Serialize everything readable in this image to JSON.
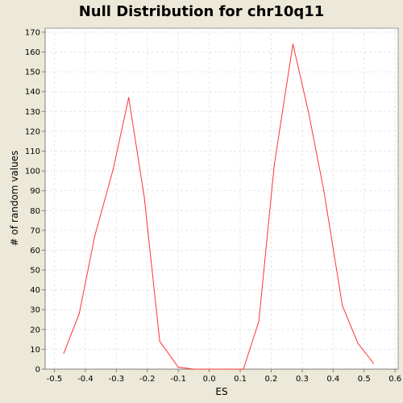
{
  "chart_data": {
    "type": "line",
    "title": "Null Distribution for chr10q11",
    "xlabel": "ES",
    "ylabel": "# of random values",
    "xlim": [
      -0.53,
      0.61
    ],
    "ylim": [
      0,
      172
    ],
    "xticks": [
      "-0.5",
      "-0.4",
      "-0.3",
      "-0.2",
      "-0.1",
      "0.0",
      "0.1",
      "0.2",
      "0.3",
      "0.4",
      "0.5",
      "0.6"
    ],
    "yticks": [
      "0",
      "10",
      "20",
      "30",
      "40",
      "50",
      "60",
      "70",
      "80",
      "90",
      "100",
      "110",
      "120",
      "130",
      "140",
      "150",
      "160",
      "170"
    ],
    "grid": true,
    "series": [
      {
        "color": "#ff3333",
        "x": [
          -0.47,
          -0.42,
          -0.37,
          -0.31,
          -0.26,
          -0.21,
          -0.16,
          -0.1,
          -0.05,
          0.0,
          0.05,
          0.11,
          0.16,
          0.21,
          0.27,
          0.32,
          0.37,
          0.43,
          0.48,
          0.53
        ],
        "y": [
          8,
          28,
          67,
          101,
          137,
          87,
          14,
          1,
          0,
          0,
          0,
          0,
          24,
          103,
          164,
          130,
          90,
          32,
          13,
          3
        ]
      }
    ]
  }
}
